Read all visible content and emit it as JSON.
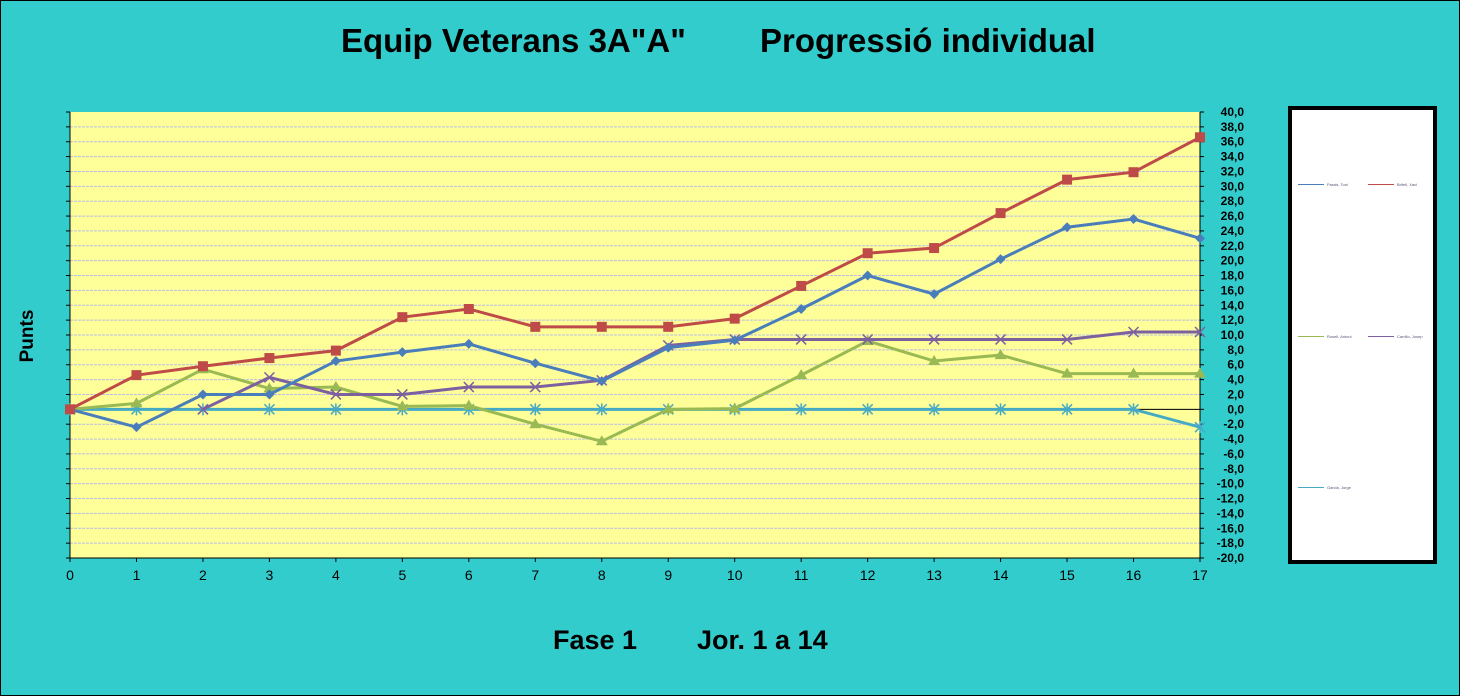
{
  "title_left": "Equip Veterans 3A\"A\"",
  "title_right": "Progressió individual",
  "footer_left": "Fase 1",
  "footer_right": "Jor. 1 a 14",
  "chart_data": {
    "type": "line",
    "ylabel": "Punts",
    "x": [
      0,
      1,
      2,
      3,
      4,
      5,
      6,
      7,
      8,
      9,
      10,
      11,
      12,
      13,
      14,
      15,
      16,
      17
    ],
    "xlim": [
      0,
      17
    ],
    "ylim": [
      -20,
      40
    ],
    "ytick_step": 2,
    "grid": true,
    "legend_placement": "right",
    "plot_background": "#ffff99",
    "series": [
      {
        "name": "Parals, Toni",
        "color": "#4a7ebb",
        "marker": "diamond",
        "values": [
          0,
          -2.4,
          2,
          2,
          6.5,
          7.7,
          8.8,
          6.2,
          3.8,
          8.3,
          9.3,
          13.5,
          18,
          15.5,
          20.2,
          24.5,
          25.6,
          23
        ]
      },
      {
        "name": "Brifell, Xavi",
        "color": "#be4b48",
        "marker": "square",
        "values": [
          0,
          4.6,
          5.8,
          6.9,
          7.9,
          12.4,
          13.5,
          11.1,
          11.1,
          11.1,
          12.2,
          16.6,
          21,
          21.7,
          26.4,
          30.9,
          31.9,
          36.6
        ]
      },
      {
        "name": "Rosell, Antoni",
        "color": "#98b954",
        "marker": "triangle",
        "values": [
          0,
          0.8,
          5.4,
          2.8,
          3,
          0.4,
          0.5,
          -2,
          -4.3,
          0,
          0.1,
          4.6,
          9.2,
          6.5,
          7.3,
          4.8,
          4.8,
          4.8
        ]
      },
      {
        "name": "Carrillo, Josep",
        "color": "#7d60a0",
        "marker": "x",
        "values": [
          null,
          null,
          0,
          4.3,
          2,
          2,
          3,
          3,
          3.9,
          8.6,
          9.4,
          9.4,
          9.4,
          9.4,
          9.4,
          9.4,
          10.4,
          10.4
        ]
      },
      {
        "name": "Garcia, Jorge",
        "color": "#46aac5",
        "marker": "star",
        "values": [
          0,
          0,
          0,
          0,
          0,
          0,
          0,
          0,
          0,
          0,
          0,
          0,
          0,
          0,
          0,
          0,
          0,
          -2.4
        ]
      }
    ]
  }
}
